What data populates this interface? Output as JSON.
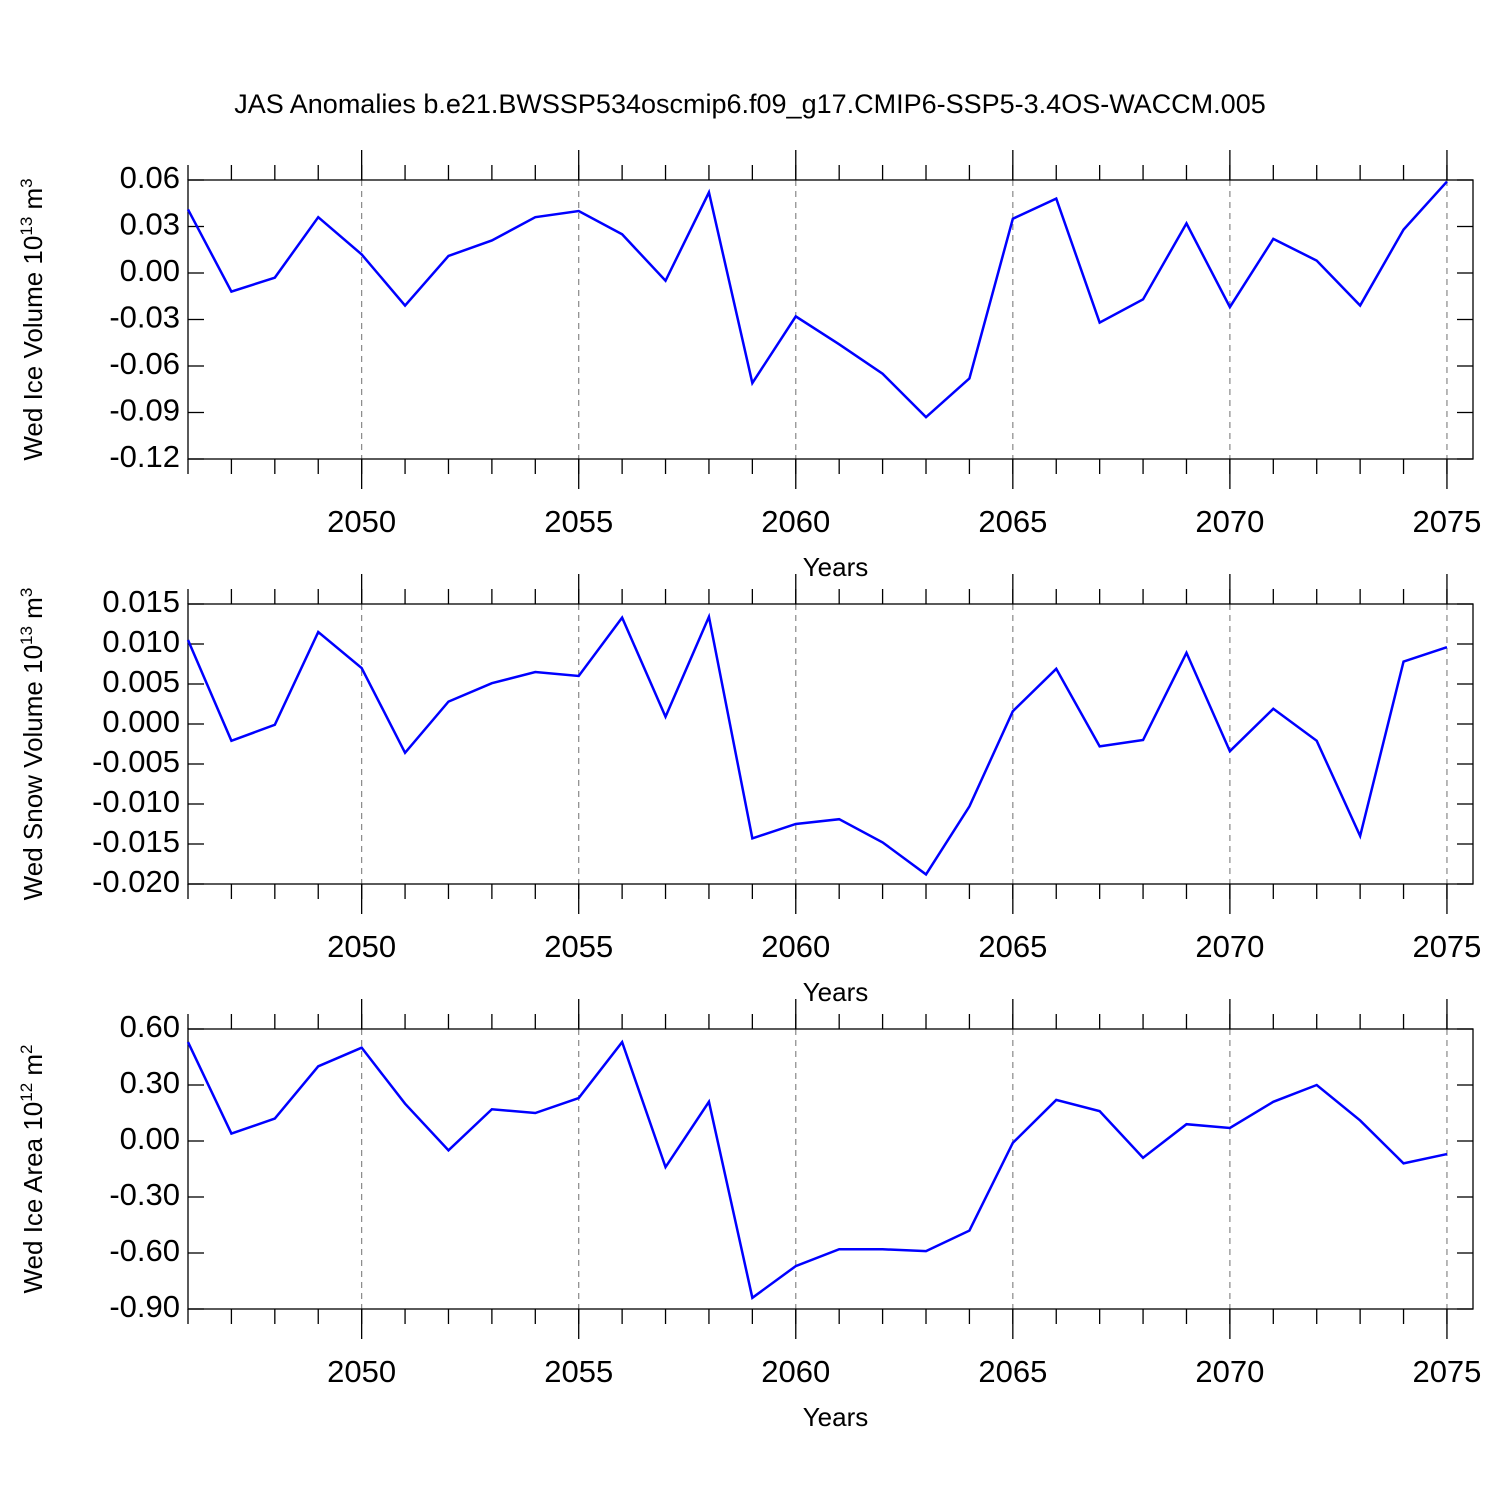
{
  "chart_data": [
    {
      "type": "line",
      "title": "JAS Anomalies b.e21.BWSSP534oscmip6.f09_g17.CMIP6-SSP5-3.4OS-WACCM.005",
      "ylabel": [
        "Wed Ice Volume 10",
        "13",
        " m",
        "3"
      ],
      "xlabel": "Years",
      "x": [
        2046,
        2047,
        2048,
        2049,
        2050,
        2051,
        2052,
        2053,
        2054,
        2055,
        2056,
        2057,
        2058,
        2059,
        2060,
        2061,
        2062,
        2063,
        2064,
        2065,
        2066,
        2067,
        2068,
        2069,
        2070,
        2071,
        2072,
        2073,
        2074,
        2075
      ],
      "series": [
        {
          "color": "#0000ff",
          "values": [
            0.041,
            -0.012,
            -0.003,
            0.036,
            0.012,
            -0.021,
            0.011,
            0.021,
            0.036,
            0.04,
            0.025,
            -0.005,
            0.052,
            -0.071,
            -0.028,
            -0.046,
            -0.065,
            -0.093,
            -0.068,
            0.035,
            0.048,
            -0.032,
            -0.017,
            0.032,
            -0.022,
            0.022,
            0.008,
            -0.021,
            0.028,
            0.059
          ]
        }
      ],
      "xlim": [
        2046,
        2075.6
      ],
      "xticks": [
        2050,
        2055,
        2060,
        2065,
        2070,
        2075
      ],
      "ylim": [
        -0.12,
        0.06
      ],
      "yticks": [
        0.06,
        0.03,
        {
          "value": 0,
          "label": "0.00"
        },
        -0.03,
        -0.06,
        -0.09,
        -0.12
      ],
      "grid": "x"
    },
    {
      "type": "line",
      "ylabel": [
        "Wed Snow Volume 10",
        "13",
        " m",
        "3"
      ],
      "xlabel": "Years",
      "x": [
        2046,
        2047,
        2048,
        2049,
        2050,
        2051,
        2052,
        2053,
        2054,
        2055,
        2056,
        2057,
        2058,
        2059,
        2060,
        2061,
        2062,
        2063,
        2064,
        2065,
        2066,
        2067,
        2068,
        2069,
        2070,
        2071,
        2072,
        2073,
        2074,
        2075
      ],
      "series": [
        {
          "color": "#0000ff",
          "values": [
            0.0105,
            -0.0021,
            -0.0001,
            0.0115,
            0.007,
            -0.0036,
            0.0028,
            0.0051,
            0.0065,
            0.006,
            0.0133,
            0.0009,
            0.0134,
            -0.0143,
            -0.0125,
            -0.0119,
            -0.0148,
            -0.0188,
            -0.0103,
            0.0016,
            0.0069,
            -0.0028,
            -0.002,
            0.0089,
            -0.0034,
            0.0019,
            -0.0021,
            -0.014,
            0.0078,
            0.0096
          ]
        }
      ],
      "xlim": [
        2046,
        2075.6
      ],
      "xticks": [
        2050,
        2055,
        2060,
        2065,
        2070,
        2075
      ],
      "ylim": [
        -0.02,
        0.015
      ],
      "yticks": [
        0.015,
        {
          "value": 0.01,
          "label": "0.010"
        },
        0.005,
        {
          "value": 0,
          "label": "0.000"
        },
        -0.005,
        {
          "value": -0.01,
          "label": "-0.010"
        },
        -0.015,
        {
          "value": -0.02,
          "label": "-0.020"
        }
      ],
      "grid": "x"
    },
    {
      "type": "line",
      "ylabel": [
        "Wed Ice Area 10",
        "12",
        " m",
        "2"
      ],
      "xlabel": "Years",
      "x": [
        2046,
        2047,
        2048,
        2049,
        2050,
        2051,
        2052,
        2053,
        2054,
        2055,
        2056,
        2057,
        2058,
        2059,
        2060,
        2061,
        2062,
        2063,
        2064,
        2065,
        2066,
        2067,
        2068,
        2069,
        2070,
        2071,
        2072,
        2073,
        2074,
        2075
      ],
      "series": [
        {
          "color": "#0000ff",
          "values": [
            0.53,
            0.04,
            0.12,
            0.4,
            0.5,
            0.2,
            -0.05,
            0.17,
            0.15,
            0.23,
            0.53,
            -0.14,
            0.21,
            -0.84,
            -0.67,
            -0.58,
            -0.58,
            -0.59,
            -0.48,
            -0.01,
            0.22,
            0.16,
            -0.09,
            0.09,
            0.07,
            0.21,
            0.3,
            0.11,
            -0.12,
            -0.07
          ]
        }
      ],
      "xlim": [
        2046,
        2075.6
      ],
      "xticks": [
        2050,
        2055,
        2060,
        2065,
        2070,
        2075
      ],
      "ylim": [
        -0.9,
        0.6
      ],
      "yticks": [
        {
          "value": 0.6,
          "label": "0.60"
        },
        {
          "value": 0.3,
          "label": "0.30"
        },
        {
          "value": 0,
          "label": "0.00"
        },
        {
          "value": -0.3,
          "label": "-0.30"
        },
        {
          "value": -0.6,
          "label": "-0.60"
        },
        {
          "value": -0.9,
          "label": "-0.90"
        }
      ],
      "grid": "x"
    }
  ]
}
